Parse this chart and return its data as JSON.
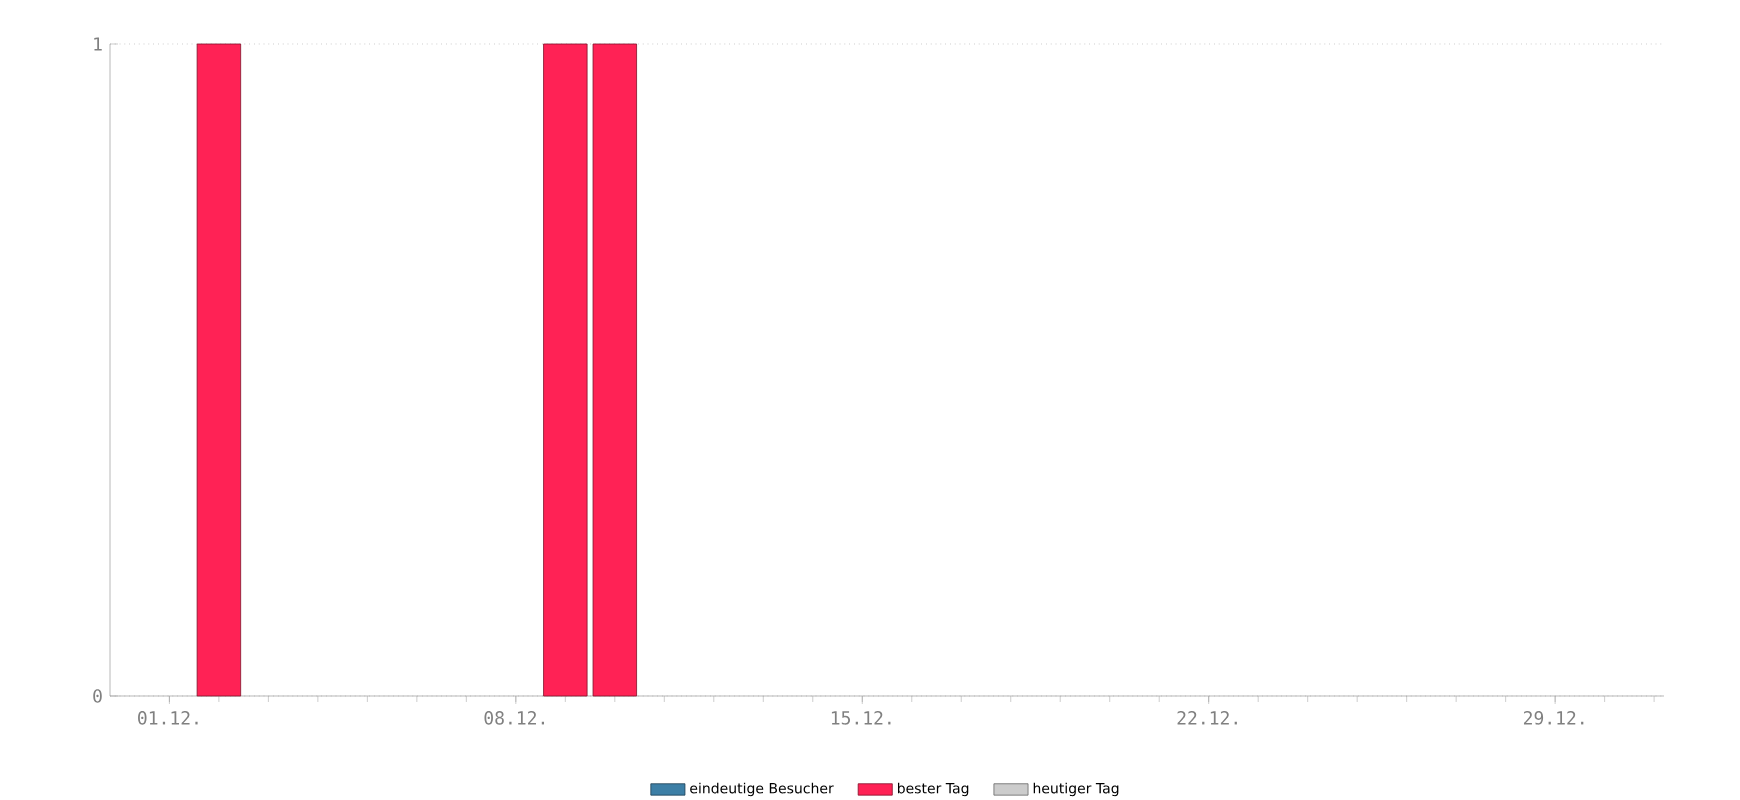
{
  "chart_data": {
    "type": "bar",
    "categories": [
      "01.12.",
      null,
      null,
      null,
      null,
      null,
      null,
      "08.12.",
      null,
      null,
      null,
      null,
      null,
      null,
      "15.12.",
      null,
      null,
      null,
      null,
      null,
      null,
      "22.12.",
      null,
      null,
      null,
      null,
      null,
      null,
      "29.12.",
      null,
      null
    ],
    "series": [
      {
        "name": "eindeutige Besucher",
        "color": "#3d7fa6",
        "values": [
          null,
          null,
          null,
          null,
          null,
          null,
          null,
          null,
          null,
          null,
          null,
          null,
          null,
          null,
          null,
          null,
          null,
          null,
          null,
          null,
          null,
          null,
          null,
          null,
          null,
          null,
          null,
          null,
          null,
          null,
          null
        ]
      },
      {
        "name": "bester Tag",
        "color": "#ff2255",
        "values": [
          null,
          1,
          null,
          null,
          null,
          null,
          null,
          null,
          1,
          1,
          null,
          null,
          null,
          null,
          null,
          null,
          null,
          null,
          null,
          null,
          null,
          null,
          null,
          null,
          null,
          null,
          null,
          null,
          null,
          null,
          null
        ]
      },
      {
        "name": "heutiger Tag",
        "color": "#cccccc",
        "values": [
          null,
          null,
          null,
          null,
          null,
          null,
          null,
          null,
          null,
          null,
          null,
          null,
          null,
          null,
          null,
          null,
          null,
          null,
          null,
          null,
          null,
          null,
          null,
          null,
          null,
          null,
          null,
          null,
          null,
          null,
          null
        ]
      }
    ],
    "ylim": [
      0,
      1
    ],
    "yticks": [
      0,
      1
    ],
    "grid": "y",
    "legend": "bottom"
  }
}
